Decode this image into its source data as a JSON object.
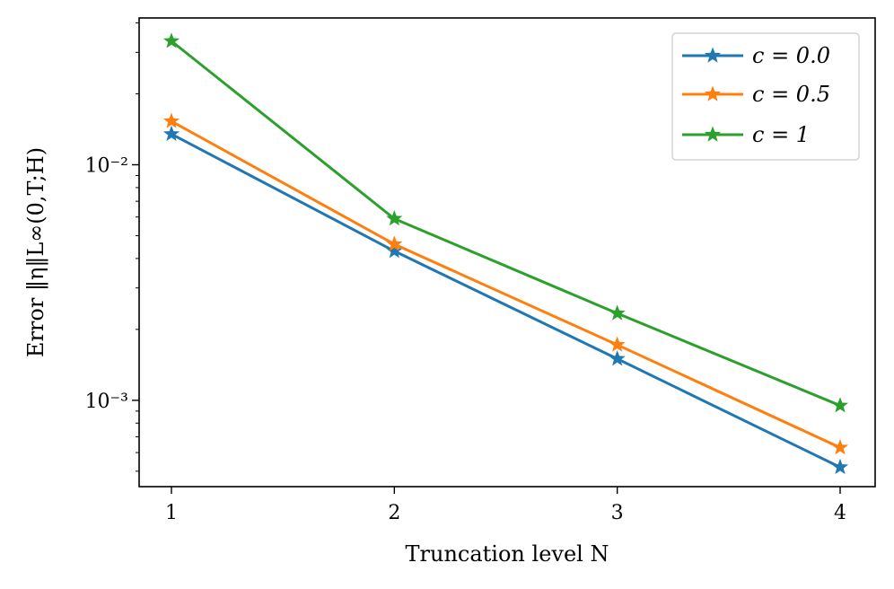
{
  "chart_data": {
    "type": "line",
    "x": [
      1,
      2,
      3,
      4
    ],
    "xticks": [
      1,
      2,
      3,
      4
    ],
    "xlabel": "Truncation level N",
    "ylabel": "Error ‖η‖L∞(0,T;H)",
    "yscale": "log",
    "ylim": [
      0.00043,
      0.042
    ],
    "yticks": [
      {
        "value": 0.01,
        "label": "10⁻²"
      },
      {
        "value": 0.001,
        "label": "10⁻³"
      }
    ],
    "grid": false,
    "legend_position": "top-right",
    "series": [
      {
        "name": "c = 0.0",
        "color": "#1f77b4",
        "values": [
          0.0135,
          0.0043,
          0.0015,
          0.00052
        ]
      },
      {
        "name": "c = 0.5",
        "color": "#ff7f0e",
        "values": [
          0.0153,
          0.0046,
          0.00172,
          0.00063
        ]
      },
      {
        "name": "c = 1",
        "color": "#2ca02c",
        "values": [
          0.0335,
          0.0059,
          0.00234,
          0.00095
        ]
      }
    ]
  }
}
